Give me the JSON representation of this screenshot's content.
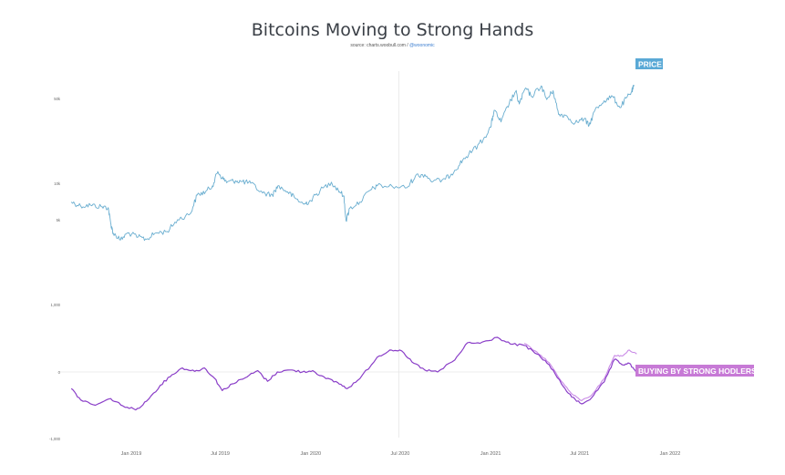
{
  "title": "Bitcoins Moving to Strong Hands",
  "subtitle_source": "source: charts.woobull.com /",
  "subtitle_handle": "@woonomic",
  "colors": {
    "price": "#6aaed0",
    "buying_primary": "#8a3ec8",
    "buying_secondary": "#c98ae6",
    "price_label_bg": "#5aa9d6",
    "buying_label_bg": "#c77ad6",
    "grid": "#e6e6e6",
    "axis_text": "#666666"
  },
  "chart_data": {
    "type": "line",
    "title": "Bitcoins Moving to Strong Hands",
    "xlabel": "",
    "ylabel": "",
    "x_ticks": [
      "Jan 2019",
      "Jul 2019",
      "Jan 2020",
      "Jul 2020",
      "Jan 2021",
      "Jul 2021",
      "Jan 2022"
    ],
    "price_axis": {
      "scale": "log",
      "left_tick_labels": [
        "50k",
        "10k",
        "5k",
        "1,000"
      ],
      "left_tick_values": [
        50000,
        10000,
        5000,
        1000
      ],
      "right_tick_labels": [
        "",
        "",
        "",
        "",
        "",
        "",
        "",
        "",
        "",
        "",
        "",
        "",
        "",
        "",
        "",
        ""
      ]
    },
    "flow_axis": {
      "left_tick_labels": [
        "0",
        "-1,000"
      ],
      "left_tick_values": [
        0,
        -1000
      ],
      "right_tick_labels": [
        "",
        "",
        "",
        "",
        "",
        "",
        "",
        "",
        ""
      ]
    },
    "labels": {
      "price": "PRICE",
      "buying": "BUYING BY STRONG HODLERS"
    },
    "series": [
      {
        "name": "PRICE",
        "points": [
          [
            "2018-09-01",
            7000
          ],
          [
            "2018-09-20",
            6500
          ],
          [
            "2018-10-10",
            6600
          ],
          [
            "2018-11-01",
            6400
          ],
          [
            "2018-11-15",
            6300
          ],
          [
            "2018-11-20",
            4700
          ],
          [
            "2018-11-25",
            3900
          ],
          [
            "2018-12-10",
            3400
          ],
          [
            "2018-12-25",
            3900
          ],
          [
            "2019-01-15",
            3600
          ],
          [
            "2019-02-01",
            3450
          ],
          [
            "2019-02-20",
            3900
          ],
          [
            "2019-03-15",
            4000
          ],
          [
            "2019-04-05",
            5000
          ],
          [
            "2019-05-01",
            5600
          ],
          [
            "2019-05-15",
            8000
          ],
          [
            "2019-06-01",
            8500
          ],
          [
            "2019-06-15",
            9500
          ],
          [
            "2019-06-26",
            12500
          ],
          [
            "2019-07-05",
            11000
          ],
          [
            "2019-07-15",
            10200
          ],
          [
            "2019-08-01",
            10500
          ],
          [
            "2019-08-15",
            10300
          ],
          [
            "2019-09-01",
            10000
          ],
          [
            "2019-09-25",
            8300
          ],
          [
            "2019-10-15",
            8000
          ],
          [
            "2019-10-26",
            9500
          ],
          [
            "2019-11-15",
            8500
          ],
          [
            "2019-12-01",
            7500
          ],
          [
            "2019-12-18",
            6700
          ],
          [
            "2020-01-01",
            7200
          ],
          [
            "2020-01-20",
            8700
          ],
          [
            "2020-02-12",
            10200
          ],
          [
            "2020-02-26",
            8800
          ],
          [
            "2020-03-08",
            7900
          ],
          [
            "2020-03-13",
            4900
          ],
          [
            "2020-03-20",
            6200
          ],
          [
            "2020-04-10",
            7000
          ],
          [
            "2020-04-30",
            8700
          ],
          [
            "2020-05-15",
            9500
          ],
          [
            "2020-06-15",
            9400
          ],
          [
            "2020-07-15",
            9200
          ],
          [
            "2020-08-01",
            11500
          ],
          [
            "2020-08-20",
            11800
          ],
          [
            "2020-09-05",
            10300
          ],
          [
            "2020-10-01",
            10800
          ],
          [
            "2020-10-20",
            12800
          ],
          [
            "2020-11-05",
            15500
          ],
          [
            "2020-11-25",
            18500
          ],
          [
            "2020-12-17",
            23000
          ],
          [
            "2021-01-01",
            29000
          ],
          [
            "2021-01-08",
            40000
          ],
          [
            "2021-01-22",
            32000
          ],
          [
            "2021-02-08",
            46000
          ],
          [
            "2021-02-21",
            57000
          ],
          [
            "2021-02-28",
            45000
          ],
          [
            "2021-03-13",
            61000
          ],
          [
            "2021-03-25",
            52000
          ],
          [
            "2021-04-14",
            63500
          ],
          [
            "2021-04-25",
            49000
          ],
          [
            "2021-05-08",
            58000
          ],
          [
            "2021-05-19",
            37000
          ],
          [
            "2021-06-01",
            36500
          ],
          [
            "2021-06-22",
            31500
          ],
          [
            "2021-07-10",
            34000
          ],
          [
            "2021-07-20",
            29800
          ],
          [
            "2021-08-01",
            40000
          ],
          [
            "2021-08-20",
            48000
          ],
          [
            "2021-09-06",
            52000
          ],
          [
            "2021-09-21",
            42000
          ],
          [
            "2021-10-05",
            51000
          ],
          [
            "2021-10-15",
            57000
          ],
          [
            "2021-10-20",
            64000
          ]
        ]
      },
      {
        "name": "BUYING BY STRONG HODLERS",
        "points": [
          [
            "2018-09-01",
            -250
          ],
          [
            "2018-09-20",
            -420
          ],
          [
            "2018-10-20",
            -500
          ],
          [
            "2018-11-20",
            -400
          ],
          [
            "2018-12-15",
            -510
          ],
          [
            "2019-01-10",
            -570
          ],
          [
            "2019-02-01",
            -440
          ],
          [
            "2019-03-01",
            -200
          ],
          [
            "2019-03-25",
            -40
          ],
          [
            "2019-04-15",
            60
          ],
          [
            "2019-05-10",
            10
          ],
          [
            "2019-05-30",
            60
          ],
          [
            "2019-06-20",
            -100
          ],
          [
            "2019-07-05",
            -280
          ],
          [
            "2019-07-25",
            -180
          ],
          [
            "2019-08-20",
            -90
          ],
          [
            "2019-09-15",
            20
          ],
          [
            "2019-10-05",
            -140
          ],
          [
            "2019-10-25",
            0
          ],
          [
            "2019-11-20",
            30
          ],
          [
            "2019-12-15",
            0
          ],
          [
            "2020-01-05",
            20
          ],
          [
            "2020-02-01",
            -100
          ],
          [
            "2020-02-25",
            -160
          ],
          [
            "2020-03-15",
            -250
          ],
          [
            "2020-04-10",
            -100
          ],
          [
            "2020-05-15",
            220
          ],
          [
            "2020-06-10",
            330
          ],
          [
            "2020-06-30",
            330
          ],
          [
            "2020-07-25",
            150
          ],
          [
            "2020-08-20",
            30
          ],
          [
            "2020-09-15",
            0
          ],
          [
            "2020-10-20",
            180
          ],
          [
            "2020-11-15",
            440
          ],
          [
            "2020-12-10",
            430
          ],
          [
            "2021-01-15",
            520
          ],
          [
            "2021-02-10",
            420
          ],
          [
            "2021-03-10",
            400
          ],
          [
            "2021-04-05",
            270
          ],
          [
            "2021-04-30",
            110
          ],
          [
            "2021-05-25",
            -180
          ],
          [
            "2021-06-15",
            -380
          ],
          [
            "2021-07-05",
            -480
          ],
          [
            "2021-07-25",
            -390
          ],
          [
            "2021-08-20",
            -150
          ],
          [
            "2021-09-10",
            190
          ],
          [
            "2021-09-25",
            110
          ],
          [
            "2021-10-10",
            130
          ],
          [
            "2021-10-25",
            -20
          ]
        ],
        "alt_points": [
          [
            "2021-03-10",
            430
          ],
          [
            "2021-04-05",
            300
          ],
          [
            "2021-04-30",
            140
          ],
          [
            "2021-05-25",
            -140
          ],
          [
            "2021-06-15",
            -330
          ],
          [
            "2021-07-05",
            -430
          ],
          [
            "2021-07-25",
            -350
          ],
          [
            "2021-08-20",
            -100
          ],
          [
            "2021-09-10",
            250
          ],
          [
            "2021-09-25",
            240
          ],
          [
            "2021-10-10",
            330
          ],
          [
            "2021-10-25",
            270
          ]
        ]
      }
    ]
  }
}
